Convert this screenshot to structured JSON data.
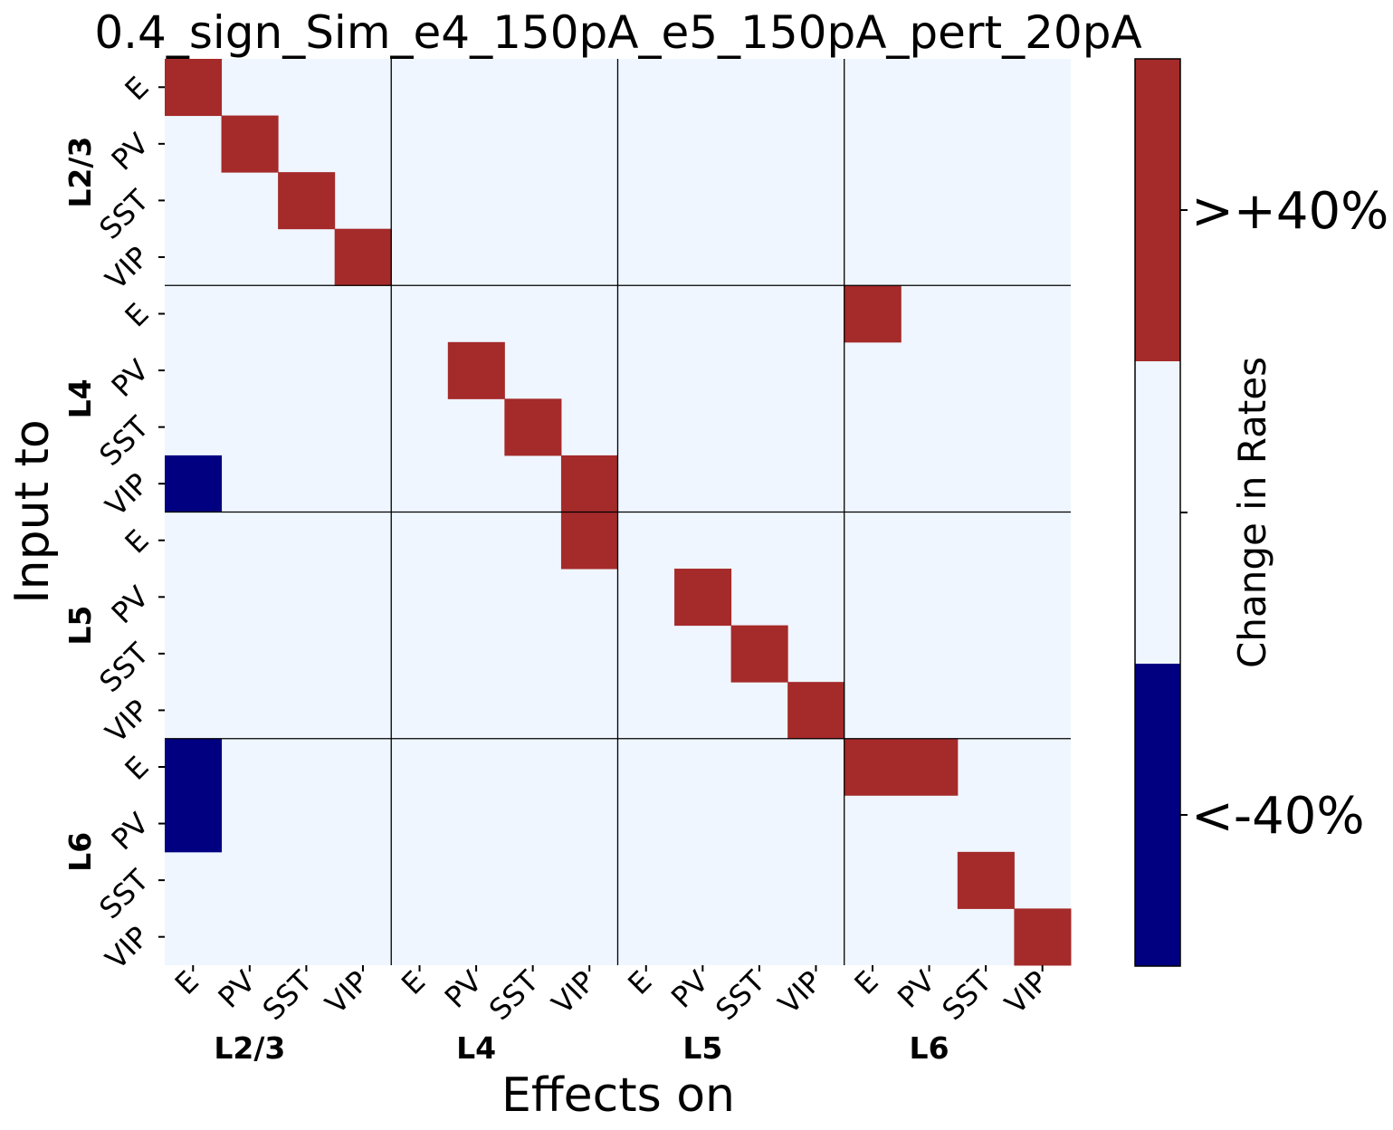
{
  "chart_data": {
    "type": "heatmap",
    "title": "0.4_sign_Sim_e4_150pA_e5_150pA_pert_20pA",
    "xlabel": "Effects on",
    "ylabel": "Input to",
    "cell_types": [
      "E",
      "PV",
      "SST",
      "VIP"
    ],
    "layers": [
      "L2/3",
      "L4",
      "L5",
      "L6"
    ],
    "value_encoding": {
      "-1": "<-40%",
      "0": "within ±40%",
      "1": ">+40%"
    },
    "matrix": [
      [
        1,
        0,
        0,
        0,
        0,
        0,
        0,
        0,
        0,
        0,
        0,
        0,
        0,
        0,
        0,
        0
      ],
      [
        0,
        1,
        0,
        0,
        0,
        0,
        0,
        0,
        0,
        0,
        0,
        0,
        0,
        0,
        0,
        0
      ],
      [
        0,
        0,
        1,
        0,
        0,
        0,
        0,
        0,
        0,
        0,
        0,
        0,
        0,
        0,
        0,
        0
      ],
      [
        0,
        0,
        0,
        1,
        0,
        0,
        0,
        0,
        0,
        0,
        0,
        0,
        0,
        0,
        0,
        0
      ],
      [
        0,
        0,
        0,
        0,
        0,
        0,
        0,
        0,
        0,
        0,
        0,
        0,
        1,
        0,
        0,
        0
      ],
      [
        0,
        0,
        0,
        0,
        0,
        1,
        0,
        0,
        0,
        0,
        0,
        0,
        0,
        0,
        0,
        0
      ],
      [
        0,
        0,
        0,
        0,
        0,
        0,
        1,
        0,
        0,
        0,
        0,
        0,
        0,
        0,
        0,
        0
      ],
      [
        -1,
        0,
        0,
        0,
        0,
        0,
        0,
        1,
        0,
        0,
        0,
        0,
        0,
        0,
        0,
        0
      ],
      [
        0,
        0,
        0,
        0,
        0,
        0,
        0,
        1,
        0,
        0,
        0,
        0,
        0,
        0,
        0,
        0
      ],
      [
        0,
        0,
        0,
        0,
        0,
        0,
        0,
        0,
        0,
        1,
        0,
        0,
        0,
        0,
        0,
        0
      ],
      [
        0,
        0,
        0,
        0,
        0,
        0,
        0,
        0,
        0,
        0,
        1,
        0,
        0,
        0,
        0,
        0
      ],
      [
        0,
        0,
        0,
        0,
        0,
        0,
        0,
        0,
        0,
        0,
        0,
        1,
        0,
        0,
        0,
        0
      ],
      [
        -1,
        0,
        0,
        0,
        0,
        0,
        0,
        0,
        0,
        0,
        0,
        0,
        1,
        1,
        0,
        0
      ],
      [
        -1,
        0,
        0,
        0,
        0,
        0,
        0,
        0,
        0,
        0,
        0,
        0,
        0,
        0,
        0,
        0
      ],
      [
        0,
        0,
        0,
        0,
        0,
        0,
        0,
        0,
        0,
        0,
        0,
        0,
        0,
        0,
        1,
        0
      ],
      [
        0,
        0,
        0,
        0,
        0,
        0,
        0,
        0,
        0,
        0,
        0,
        0,
        0,
        0,
        0,
        1
      ]
    ],
    "colorbar": {
      "label": "Change in Rates",
      "tick_labels": [
        ">+40%",
        "<-40%"
      ],
      "colors": {
        "positive": "#a52a2a",
        "neutral": "#eff6ff",
        "negative": "#000080"
      }
    },
    "grid": "black lines between layer blocks"
  }
}
